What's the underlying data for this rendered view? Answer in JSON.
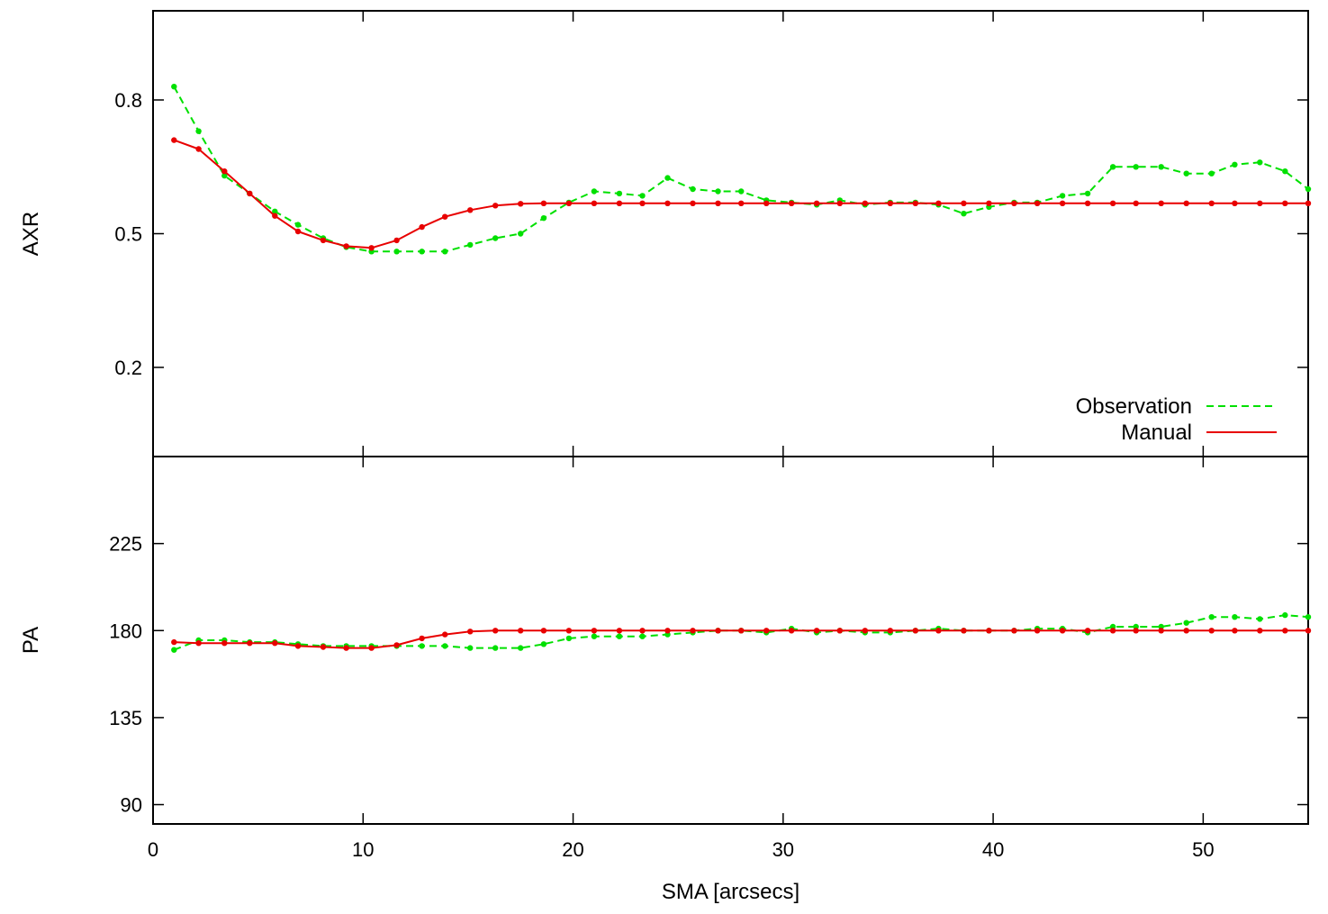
{
  "chart_data": [
    {
      "type": "line",
      "panel": "top",
      "ylabel": "AXR",
      "xlabel": "",
      "xlim": [
        0,
        55
      ],
      "ylim": [
        0.0,
        1.0
      ],
      "xticks": [
        0,
        10,
        20,
        30,
        40,
        50
      ],
      "yticks": [
        0.2,
        0.5,
        0.8
      ],
      "ytick_labels": [
        "0.2",
        "0.5",
        "0.8"
      ],
      "legend_position": "bottom-right",
      "series": [
        {
          "name": "Observation",
          "color": "#00e000",
          "style": "dashed",
          "x": [
            1.0,
            2.17,
            3.4,
            4.6,
            5.8,
            6.9,
            8.1,
            9.2,
            10.4,
            11.6,
            12.8,
            13.9,
            15.1,
            16.3,
            17.5,
            18.6,
            19.8,
            21.0,
            22.2,
            23.3,
            24.5,
            25.7,
            26.9,
            28.0,
            29.2,
            30.4,
            31.6,
            32.7,
            33.9,
            35.1,
            36.3,
            37.4,
            38.6,
            39.8,
            41.0,
            42.1,
            43.3,
            44.5,
            45.7,
            46.8,
            48.0,
            49.2,
            50.4,
            51.5,
            52.7,
            53.9,
            55.0
          ],
          "y": [
            0.83,
            0.73,
            0.63,
            0.59,
            0.55,
            0.52,
            0.49,
            0.47,
            0.46,
            0.46,
            0.46,
            0.46,
            0.475,
            0.49,
            0.5,
            0.535,
            0.57,
            0.595,
            0.59,
            0.585,
            0.625,
            0.6,
            0.595,
            0.595,
            0.575,
            0.57,
            0.565,
            0.575,
            0.565,
            0.57,
            0.57,
            0.565,
            0.545,
            0.56,
            0.57,
            0.57,
            0.585,
            0.59,
            0.65,
            0.65,
            0.65,
            0.635,
            0.635,
            0.655,
            0.66,
            0.64,
            0.6
          ]
        },
        {
          "name": "Manual",
          "color": "#e80000",
          "style": "solid",
          "x": [
            1.0,
            2.17,
            3.4,
            4.6,
            5.8,
            6.9,
            8.1,
            9.2,
            10.4,
            11.6,
            12.8,
            13.9,
            15.1,
            16.3,
            17.5,
            18.6,
            19.8,
            21.0,
            22.2,
            23.3,
            24.5,
            25.7,
            26.9,
            28.0,
            29.2,
            30.4,
            31.6,
            32.7,
            33.9,
            35.1,
            36.3,
            37.4,
            38.6,
            39.8,
            41.0,
            42.1,
            43.3,
            44.5,
            45.7,
            46.8,
            48.0,
            49.2,
            50.4,
            51.5,
            52.7,
            53.9,
            55.0
          ],
          "y": [
            0.71,
            0.69,
            0.64,
            0.59,
            0.54,
            0.505,
            0.485,
            0.472,
            0.468,
            0.485,
            0.515,
            0.538,
            0.553,
            0.563,
            0.567,
            0.568,
            0.568,
            0.568,
            0.568,
            0.568,
            0.568,
            0.568,
            0.568,
            0.568,
            0.568,
            0.568,
            0.568,
            0.568,
            0.568,
            0.568,
            0.568,
            0.568,
            0.568,
            0.568,
            0.568,
            0.568,
            0.568,
            0.568,
            0.568,
            0.568,
            0.568,
            0.568,
            0.568,
            0.568,
            0.568,
            0.568,
            0.568
          ]
        }
      ]
    },
    {
      "type": "line",
      "panel": "bottom",
      "ylabel": "PA",
      "xlabel": "SMA [arcsecs]",
      "xlim": [
        0,
        55
      ],
      "ylim": [
        80,
        270
      ],
      "xticks": [
        0,
        10,
        20,
        30,
        40,
        50
      ],
      "xtick_labels": [
        "0",
        "10",
        "20",
        "30",
        "40",
        "50"
      ],
      "yticks": [
        90,
        135,
        180,
        225
      ],
      "ytick_labels": [
        "90",
        "135",
        "180",
        "225"
      ],
      "series": [
        {
          "name": "Observation",
          "color": "#00e000",
          "style": "dashed",
          "x": [
            1.0,
            2.17,
            3.4,
            4.6,
            5.8,
            6.9,
            8.1,
            9.2,
            10.4,
            11.6,
            12.8,
            13.9,
            15.1,
            16.3,
            17.5,
            18.6,
            19.8,
            21.0,
            22.2,
            23.3,
            24.5,
            25.7,
            26.9,
            28.0,
            29.2,
            30.4,
            31.6,
            32.7,
            33.9,
            35.1,
            36.3,
            37.4,
            38.6,
            39.8,
            41.0,
            42.1,
            43.3,
            44.5,
            45.7,
            46.8,
            48.0,
            49.2,
            50.4,
            51.5,
            52.7,
            53.9,
            55.0
          ],
          "y": [
            170,
            175,
            175,
            174,
            174,
            173,
            172,
            172,
            172,
            172,
            172,
            172,
            171,
            171,
            171,
            173,
            176,
            177,
            177,
            177,
            178,
            179,
            180,
            180,
            179,
            181,
            179,
            180,
            179,
            179,
            180,
            181,
            180,
            180,
            180,
            181,
            181,
            179,
            182,
            182,
            182,
            184,
            187,
            187,
            186,
            188,
            187
          ]
        },
        {
          "name": "Manual",
          "color": "#e80000",
          "style": "solid",
          "x": [
            1.0,
            2.17,
            3.4,
            4.6,
            5.8,
            6.9,
            8.1,
            9.2,
            10.4,
            11.6,
            12.8,
            13.9,
            15.1,
            16.3,
            17.5,
            18.6,
            19.8,
            21.0,
            22.2,
            23.3,
            24.5,
            25.7,
            26.9,
            28.0,
            29.2,
            30.4,
            31.6,
            32.7,
            33.9,
            35.1,
            36.3,
            37.4,
            38.6,
            39.8,
            41.0,
            42.1,
            43.3,
            44.5,
            45.7,
            46.8,
            48.0,
            49.2,
            50.4,
            51.5,
            52.7,
            53.9,
            55.0
          ],
          "y": [
            174,
            173.5,
            173.5,
            173.5,
            173.5,
            172,
            171.5,
            171,
            171,
            172.5,
            176,
            178,
            179.5,
            180,
            180,
            180,
            180,
            180,
            180,
            180,
            180,
            180,
            180,
            180,
            180,
            180,
            180,
            180,
            180,
            180,
            180,
            180,
            180,
            180,
            180,
            180,
            180,
            180,
            180,
            180,
            180,
            180,
            180,
            180,
            180,
            180,
            180
          ]
        }
      ]
    }
  ]
}
